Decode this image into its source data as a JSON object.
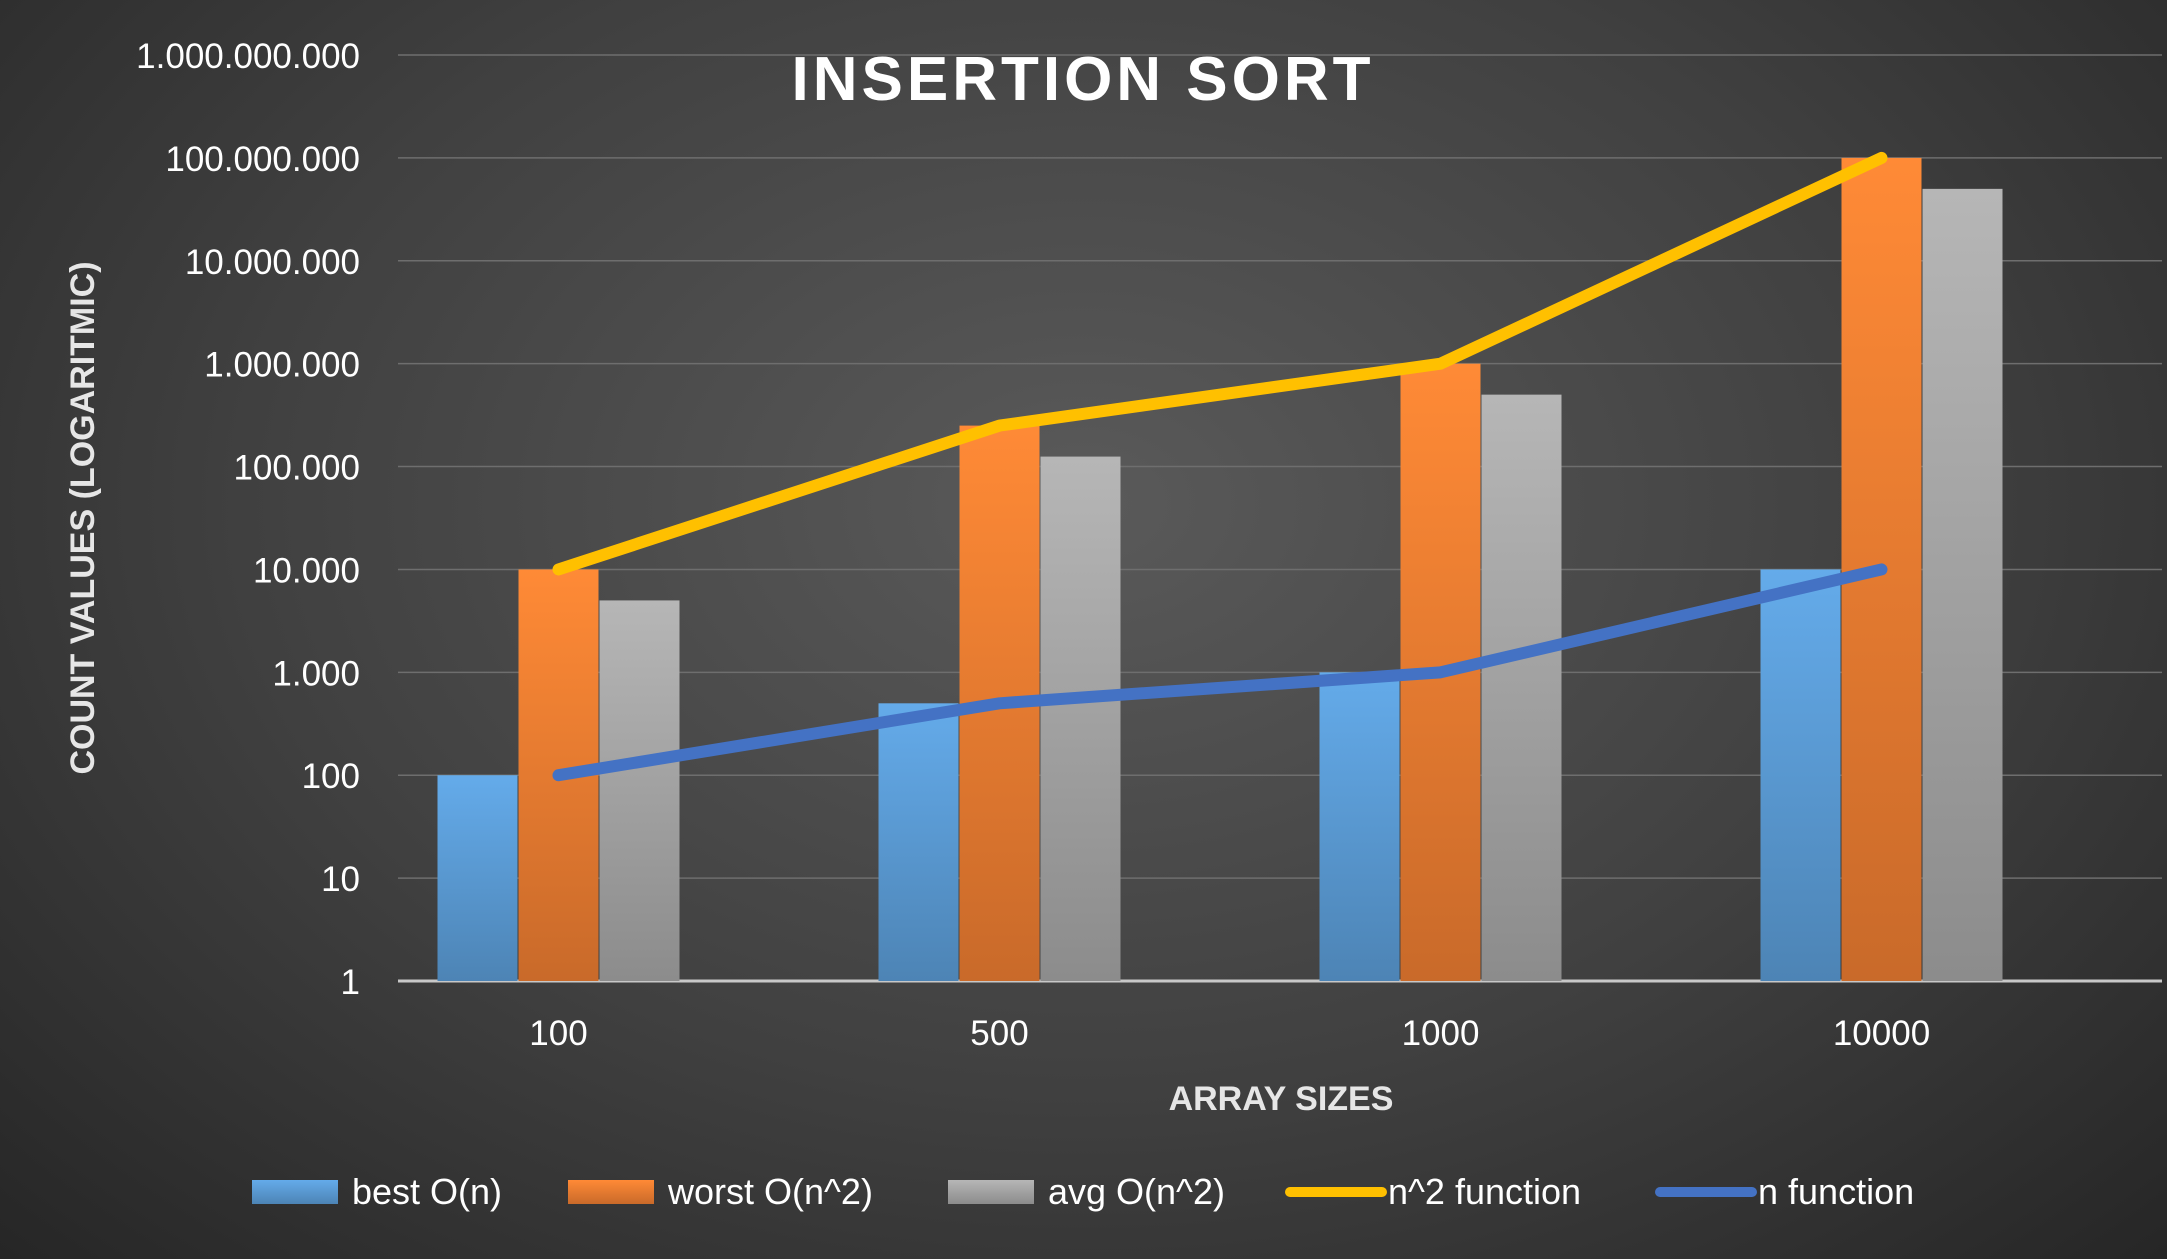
{
  "chart_data": {
    "type": "bar",
    "title": "INSERTION SORT",
    "xlabel": "ARRAY SIZES",
    "ylabel": "COUNT VALUES (LOGARITMIC)",
    "yscale": "log",
    "ylim": [
      1,
      1000000000
    ],
    "ytick_labels": [
      "1",
      "10",
      "100",
      "1.000",
      "10.000",
      "100.000",
      "1.000.000",
      "10.000.000",
      "100.000.000",
      "1.000.000.000"
    ],
    "categories": [
      "100",
      "500",
      "1000",
      "10000"
    ],
    "grid": true,
    "legend_position": "bottom",
    "series": [
      {
        "name": "best O(n)",
        "kind": "bar",
        "color": "#5b9bd5",
        "values": [
          100,
          500,
          1000,
          10000
        ]
      },
      {
        "name": "worst O(n^2)",
        "kind": "bar",
        "color": "#ed7d31",
        "values": [
          10000,
          250000,
          1000000,
          100000000
        ]
      },
      {
        "name": "avg O(n^2)",
        "kind": "bar",
        "color": "#a5a5a5",
        "values": [
          5000,
          125000,
          500000,
          50000000
        ]
      },
      {
        "name": "n^2 function",
        "kind": "line",
        "color": "#ffc000",
        "values": [
          10000,
          250000,
          1000000,
          100000000
        ]
      },
      {
        "name": "n function",
        "kind": "line",
        "color": "#4472c4",
        "values": [
          100,
          500,
          1000,
          10000
        ]
      }
    ]
  }
}
